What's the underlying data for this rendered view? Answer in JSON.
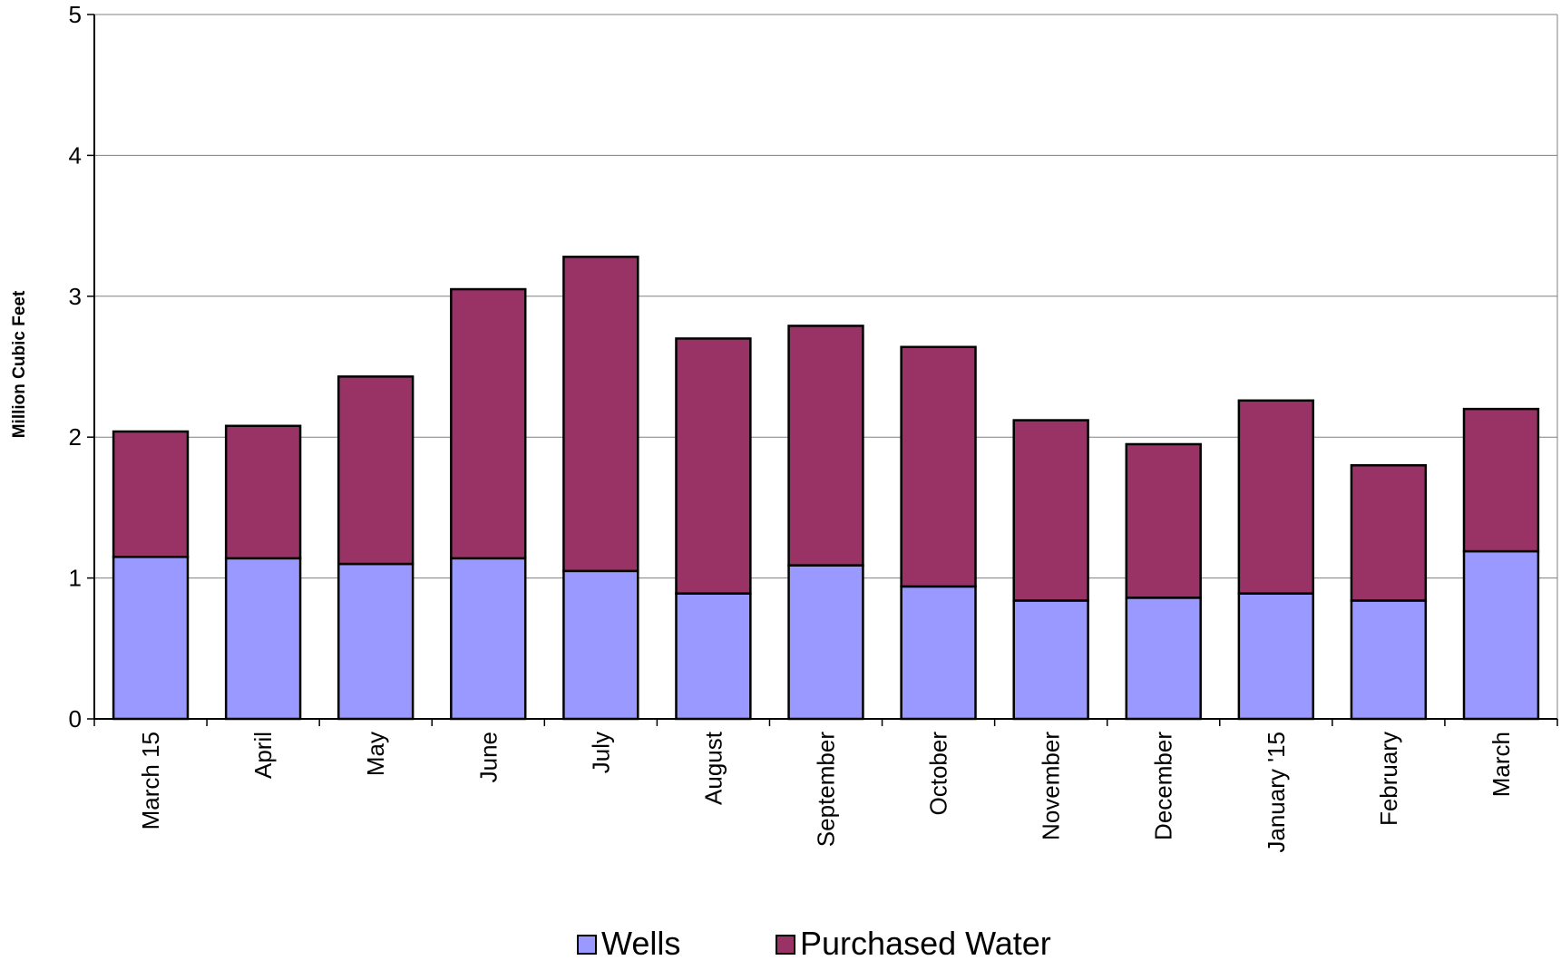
{
  "chart_data": {
    "type": "bar",
    "stacked": true,
    "title": "",
    "xlabel": "",
    "ylabel": "Million Cubic Feet",
    "ylim": [
      0,
      5
    ],
    "yticks": [
      "0",
      "1",
      "2",
      "3",
      "4",
      "5"
    ],
    "grid": true,
    "legend_position": "bottom",
    "categories": [
      "March 15",
      "April",
      "May",
      "June",
      "July",
      "August",
      "September",
      "October",
      "November",
      "December",
      "January '15",
      "February",
      "March"
    ],
    "series": [
      {
        "name": "Wells",
        "color": "#9999ff",
        "values": [
          1.15,
          1.14,
          1.1,
          1.14,
          1.05,
          0.89,
          1.09,
          0.94,
          0.84,
          0.86,
          0.89,
          0.84,
          1.19
        ]
      },
      {
        "name": "Purchased Water",
        "color": "#993366",
        "values": [
          0.89,
          0.94,
          1.33,
          1.91,
          2.23,
          1.81,
          1.7,
          1.7,
          1.28,
          1.09,
          1.37,
          0.96,
          1.01
        ]
      }
    ]
  }
}
